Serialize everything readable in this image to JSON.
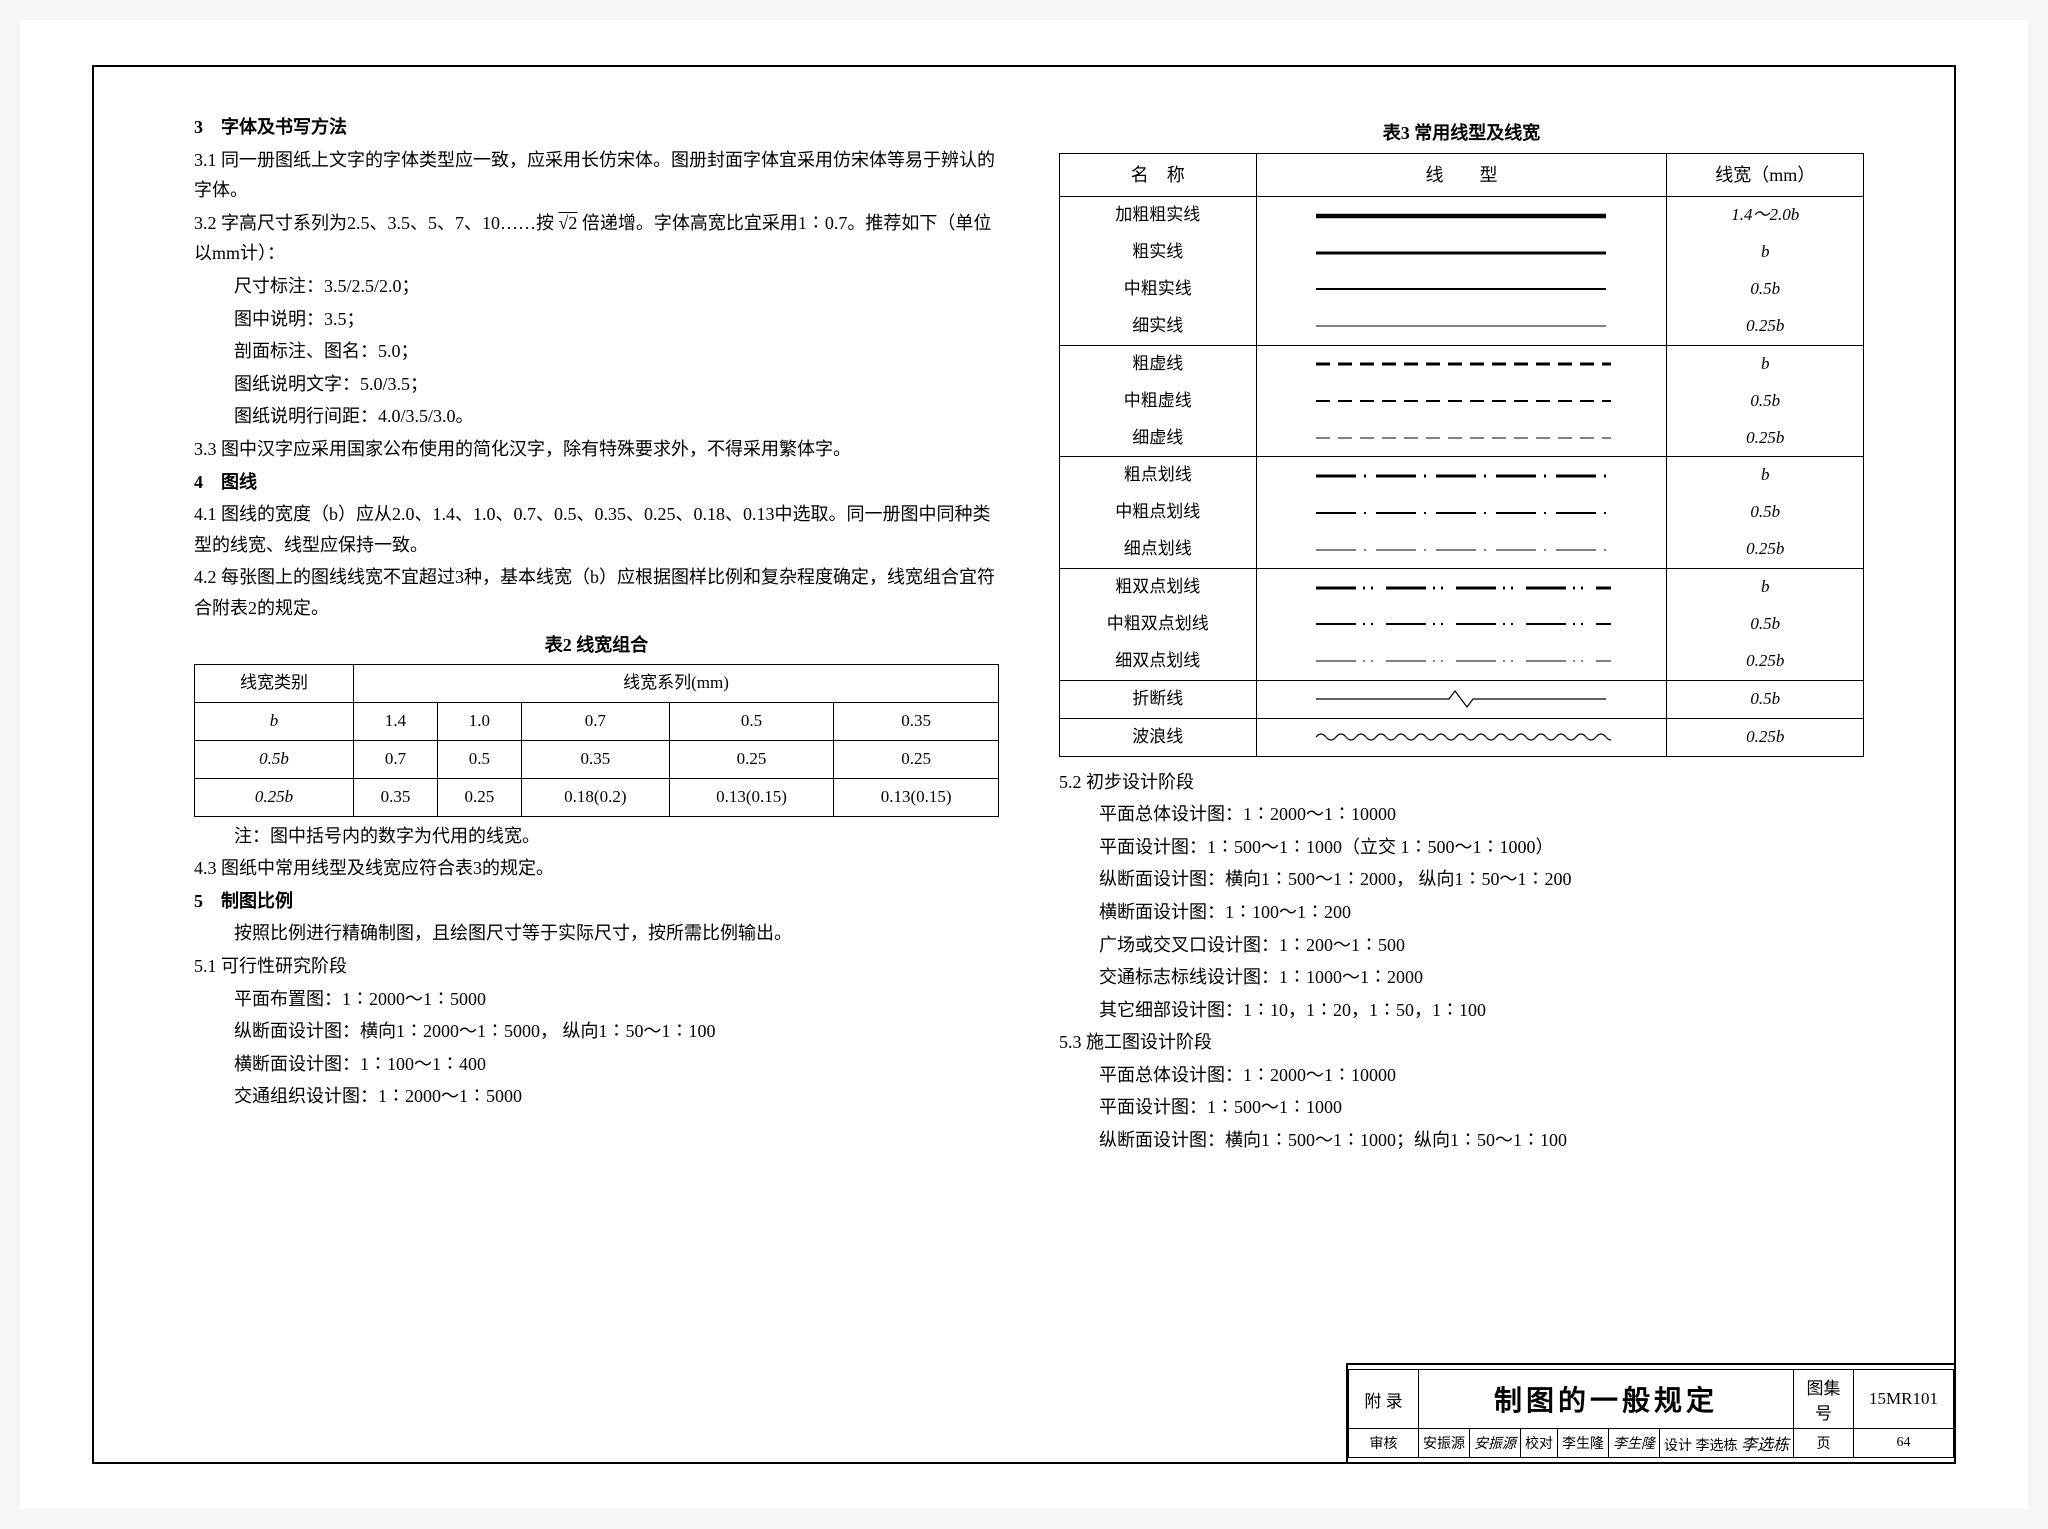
{
  "colors": {
    "border": "#000000",
    "bg": "#ffffff",
    "text": "#000000"
  },
  "fonts": {
    "body": "SimSun",
    "size_body": 18,
    "size_caption": 18
  },
  "left": {
    "h3": "3　字体及书写方法",
    "p3_1": "3.1  同一册图纸上文字的字体类型应一致，应采用长仿宋体。图册封面字体宜采用仿宋体等易于辨认的字体。",
    "p3_2a": "3.2  字高尺寸系列为2.5、3.5、5、7、10……按 ",
    "p3_2_sqrt": "√2",
    "p3_2b": " 倍递增。字体高宽比宜采用1∶0.7。推荐如下（单位以mm计）：",
    "p3_2_l1": "尺寸标注：3.5/2.5/2.0；",
    "p3_2_l2": "图中说明：3.5；",
    "p3_2_l3": "剖面标注、图名：5.0；",
    "p3_2_l4": "图纸说明文字：5.0/3.5；",
    "p3_2_l5": "图纸说明行间距：4.0/3.5/3.0。",
    "p3_3": "3.3  图中汉字应采用国家公布使用的简化汉字，除有特殊要求外，不得采用繁体字。",
    "h4": "4　图线",
    "p4_1": "4.1  图线的宽度（b）应从2.0、1.4、1.0、0.7、0.5、0.35、0.25、0.18、0.13中选取。同一册图中同种类型的线宽、线型应保持一致。",
    "p4_2": "4.2  每张图上的图线线宽不宜超过3种，基本线宽（b）应根据图样比例和复杂程度确定，线宽组合宜符合附表2的规定。",
    "t2_cap": "表2  线宽组合",
    "t2_header": [
      "线宽类别",
      "线宽系列(mm)"
    ],
    "t2_rows": [
      [
        "b",
        "1.4",
        "1.0",
        "0.7",
        "0.5",
        "0.35"
      ],
      [
        "0.5b",
        "0.7",
        "0.5",
        "0.35",
        "0.25",
        "0.25"
      ],
      [
        "0.25b",
        "0.35",
        "0.25",
        "0.18(0.2)",
        "0.13(0.15)",
        "0.13(0.15)"
      ]
    ],
    "t2_note": "注：图中括号内的数字为代用的线宽。",
    "p4_3": "4.3  图纸中常用线型及线宽应符合表3的规定。",
    "h5": "5　制图比例",
    "p5_0": "按照比例进行精确制图，且绘图尺寸等于实际尺寸，按所需比例输出。",
    "p5_1": "5.1  可行性研究阶段",
    "p5_1_l1": "平面布置图：1∶2000～1∶5000",
    "p5_1_l2": "纵断面设计图：横向1∶2000～1∶5000，  纵向1∶50～1∶100",
    "p5_1_l3": "横断面设计图：1∶100～1∶400",
    "p5_1_l4": "交通组织设计图：1∶2000～1∶5000"
  },
  "right": {
    "t3_cap": "表3  常用线型及线宽",
    "t3_header": [
      "名　称",
      "线　　型",
      "线宽（mm）"
    ],
    "t3_rows": [
      {
        "name": "加粗粗实线",
        "type": "solid",
        "w": 4.5,
        "width": "1.4～2.0b",
        "end": false
      },
      {
        "name": "粗实线",
        "type": "solid",
        "w": 3,
        "width": "b",
        "end": false
      },
      {
        "name": "中粗实线",
        "type": "solid",
        "w": 2,
        "width": "0.5b",
        "end": false
      },
      {
        "name": "细实线",
        "type": "solid",
        "w": 1,
        "width": "0.25b",
        "end": true
      },
      {
        "name": "粗虚线",
        "type": "dash",
        "w": 3,
        "width": "b",
        "end": false
      },
      {
        "name": "中粗虚线",
        "type": "dash",
        "w": 2,
        "width": "0.5b",
        "end": false
      },
      {
        "name": "细虚线",
        "type": "dash",
        "w": 1,
        "width": "0.25b",
        "end": true
      },
      {
        "name": "粗点划线",
        "type": "dashdot",
        "w": 3,
        "width": "b",
        "end": false
      },
      {
        "name": "中粗点划线",
        "type": "dashdot",
        "w": 2,
        "width": "0.5b",
        "end": false
      },
      {
        "name": "细点划线",
        "type": "dashdot",
        "w": 1,
        "width": "0.25b",
        "end": true
      },
      {
        "name": "粗双点划线",
        "type": "dashdotdot",
        "w": 3,
        "width": "b",
        "end": false
      },
      {
        "name": "中粗双点划线",
        "type": "dashdotdot",
        "w": 2,
        "width": "0.5b",
        "end": false
      },
      {
        "name": "细双点划线",
        "type": "dashdotdot",
        "w": 1,
        "width": "0.25b",
        "end": true
      },
      {
        "name": "折断线",
        "type": "break",
        "w": 1.2,
        "width": "0.5b",
        "end": true
      },
      {
        "name": "波浪线",
        "type": "wave",
        "w": 1.2,
        "width": "0.25b",
        "end": true
      }
    ],
    "p5_2": "5.2  初步设计阶段",
    "p5_2_l1": "平面总体设计图：1∶2000～1∶10000",
    "p5_2_l2": "平面设计图：1∶500～1∶1000（立交 1∶500～1∶1000）",
    "p5_2_l3": "纵断面设计图：横向1∶500～1∶2000，  纵向1∶50～1∶200",
    "p5_2_l4": "横断面设计图：1∶100～1∶200",
    "p5_2_l5": "广场或交叉口设计图：1∶200～1∶500",
    "p5_2_l6": "交通标志标线设计图：1∶1000～1∶2000",
    "p5_2_l7": "其它细部设计图：1∶10，1∶20，1∶50，1∶100",
    "p5_3": "5.3  施工图设计阶段",
    "p5_3_l1": "平面总体设计图：1∶2000～1∶10000",
    "p5_3_l2": "平面设计图：1∶500～1∶1000",
    "p5_3_l3": "纵断面设计图：横向1∶500～1∶1000；纵向1∶50～1∶100"
  },
  "titleblock": {
    "appendix": "附 录",
    "title": "制图的一般规定",
    "set_label": "图集号",
    "set_no": "15MR101",
    "review": "审核",
    "review_name": "安振源",
    "check": "校对",
    "check_name": "李生隆",
    "design": "设计",
    "design_name": "李选栋",
    "page_label": "页",
    "page_no": "64"
  }
}
